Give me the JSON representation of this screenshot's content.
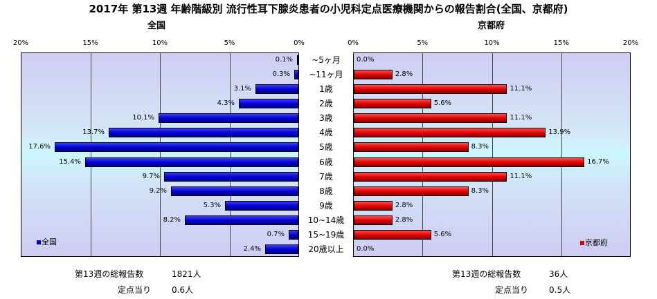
{
  "title": "2017年 第13週 年齢階級別 流行性耳下腺炎患者の小児科定点医療機関からの報告割合(全国、京都府)",
  "left_panel": {
    "heading": "全国",
    "ticks": [
      "20%",
      "15%",
      "10%",
      "5%",
      "0%"
    ],
    "legend": "全国",
    "footer": {
      "total_label": "第13週の総報告数",
      "total_value": "1821人",
      "per_label": "定点当り",
      "per_value": "0.6人"
    }
  },
  "right_panel": {
    "heading": "京都府",
    "ticks": [
      "0%",
      "5%",
      "10%",
      "15%",
      "20%"
    ],
    "legend": "京都府",
    "footer": {
      "total_label": "第13週の総報告数",
      "total_value": "36人",
      "per_label": "定点当り",
      "per_value": "0.5人"
    }
  },
  "colors": {
    "national": "#0000cc",
    "kyoto": "#dd0000"
  },
  "chart_data": {
    "type": "bar",
    "orientation": "horizontal-butterfly",
    "xlim": [
      0,
      20
    ],
    "unit": "%",
    "categories": [
      "~5ヶ月",
      "~11ヶ月",
      "1歳",
      "2歳",
      "3歳",
      "4歳",
      "5歳",
      "6歳",
      "7歳",
      "8歳",
      "9歳",
      "10~14歳",
      "15~19歳",
      "20歳以上"
    ],
    "series": [
      {
        "name": "全国",
        "values": [
          0.1,
          0.3,
          3.1,
          4.3,
          10.1,
          13.7,
          17.6,
          15.4,
          9.7,
          9.2,
          5.3,
          8.2,
          0.7,
          2.4
        ],
        "labels": [
          "0.1%",
          "0.3%",
          "3.1%",
          "4.3%",
          "10.1%",
          "13.7%",
          "17.6%",
          "15.4%",
          "9.7%",
          "9.2%",
          "5.3%",
          "8.2%",
          "0.7%",
          "2.4%"
        ]
      },
      {
        "name": "京都府",
        "values": [
          0.0,
          2.8,
          11.1,
          5.6,
          11.1,
          13.9,
          8.3,
          16.7,
          11.1,
          8.3,
          2.8,
          2.8,
          5.6,
          0.0
        ],
        "labels": [
          "0.0%",
          "2.8%",
          "11.1%",
          "5.6%",
          "11.1%",
          "13.9%",
          "8.3%",
          "16.7%",
          "11.1%",
          "8.3%",
          "2.8%",
          "2.8%",
          "5.6%",
          "0.0%"
        ]
      }
    ]
  }
}
